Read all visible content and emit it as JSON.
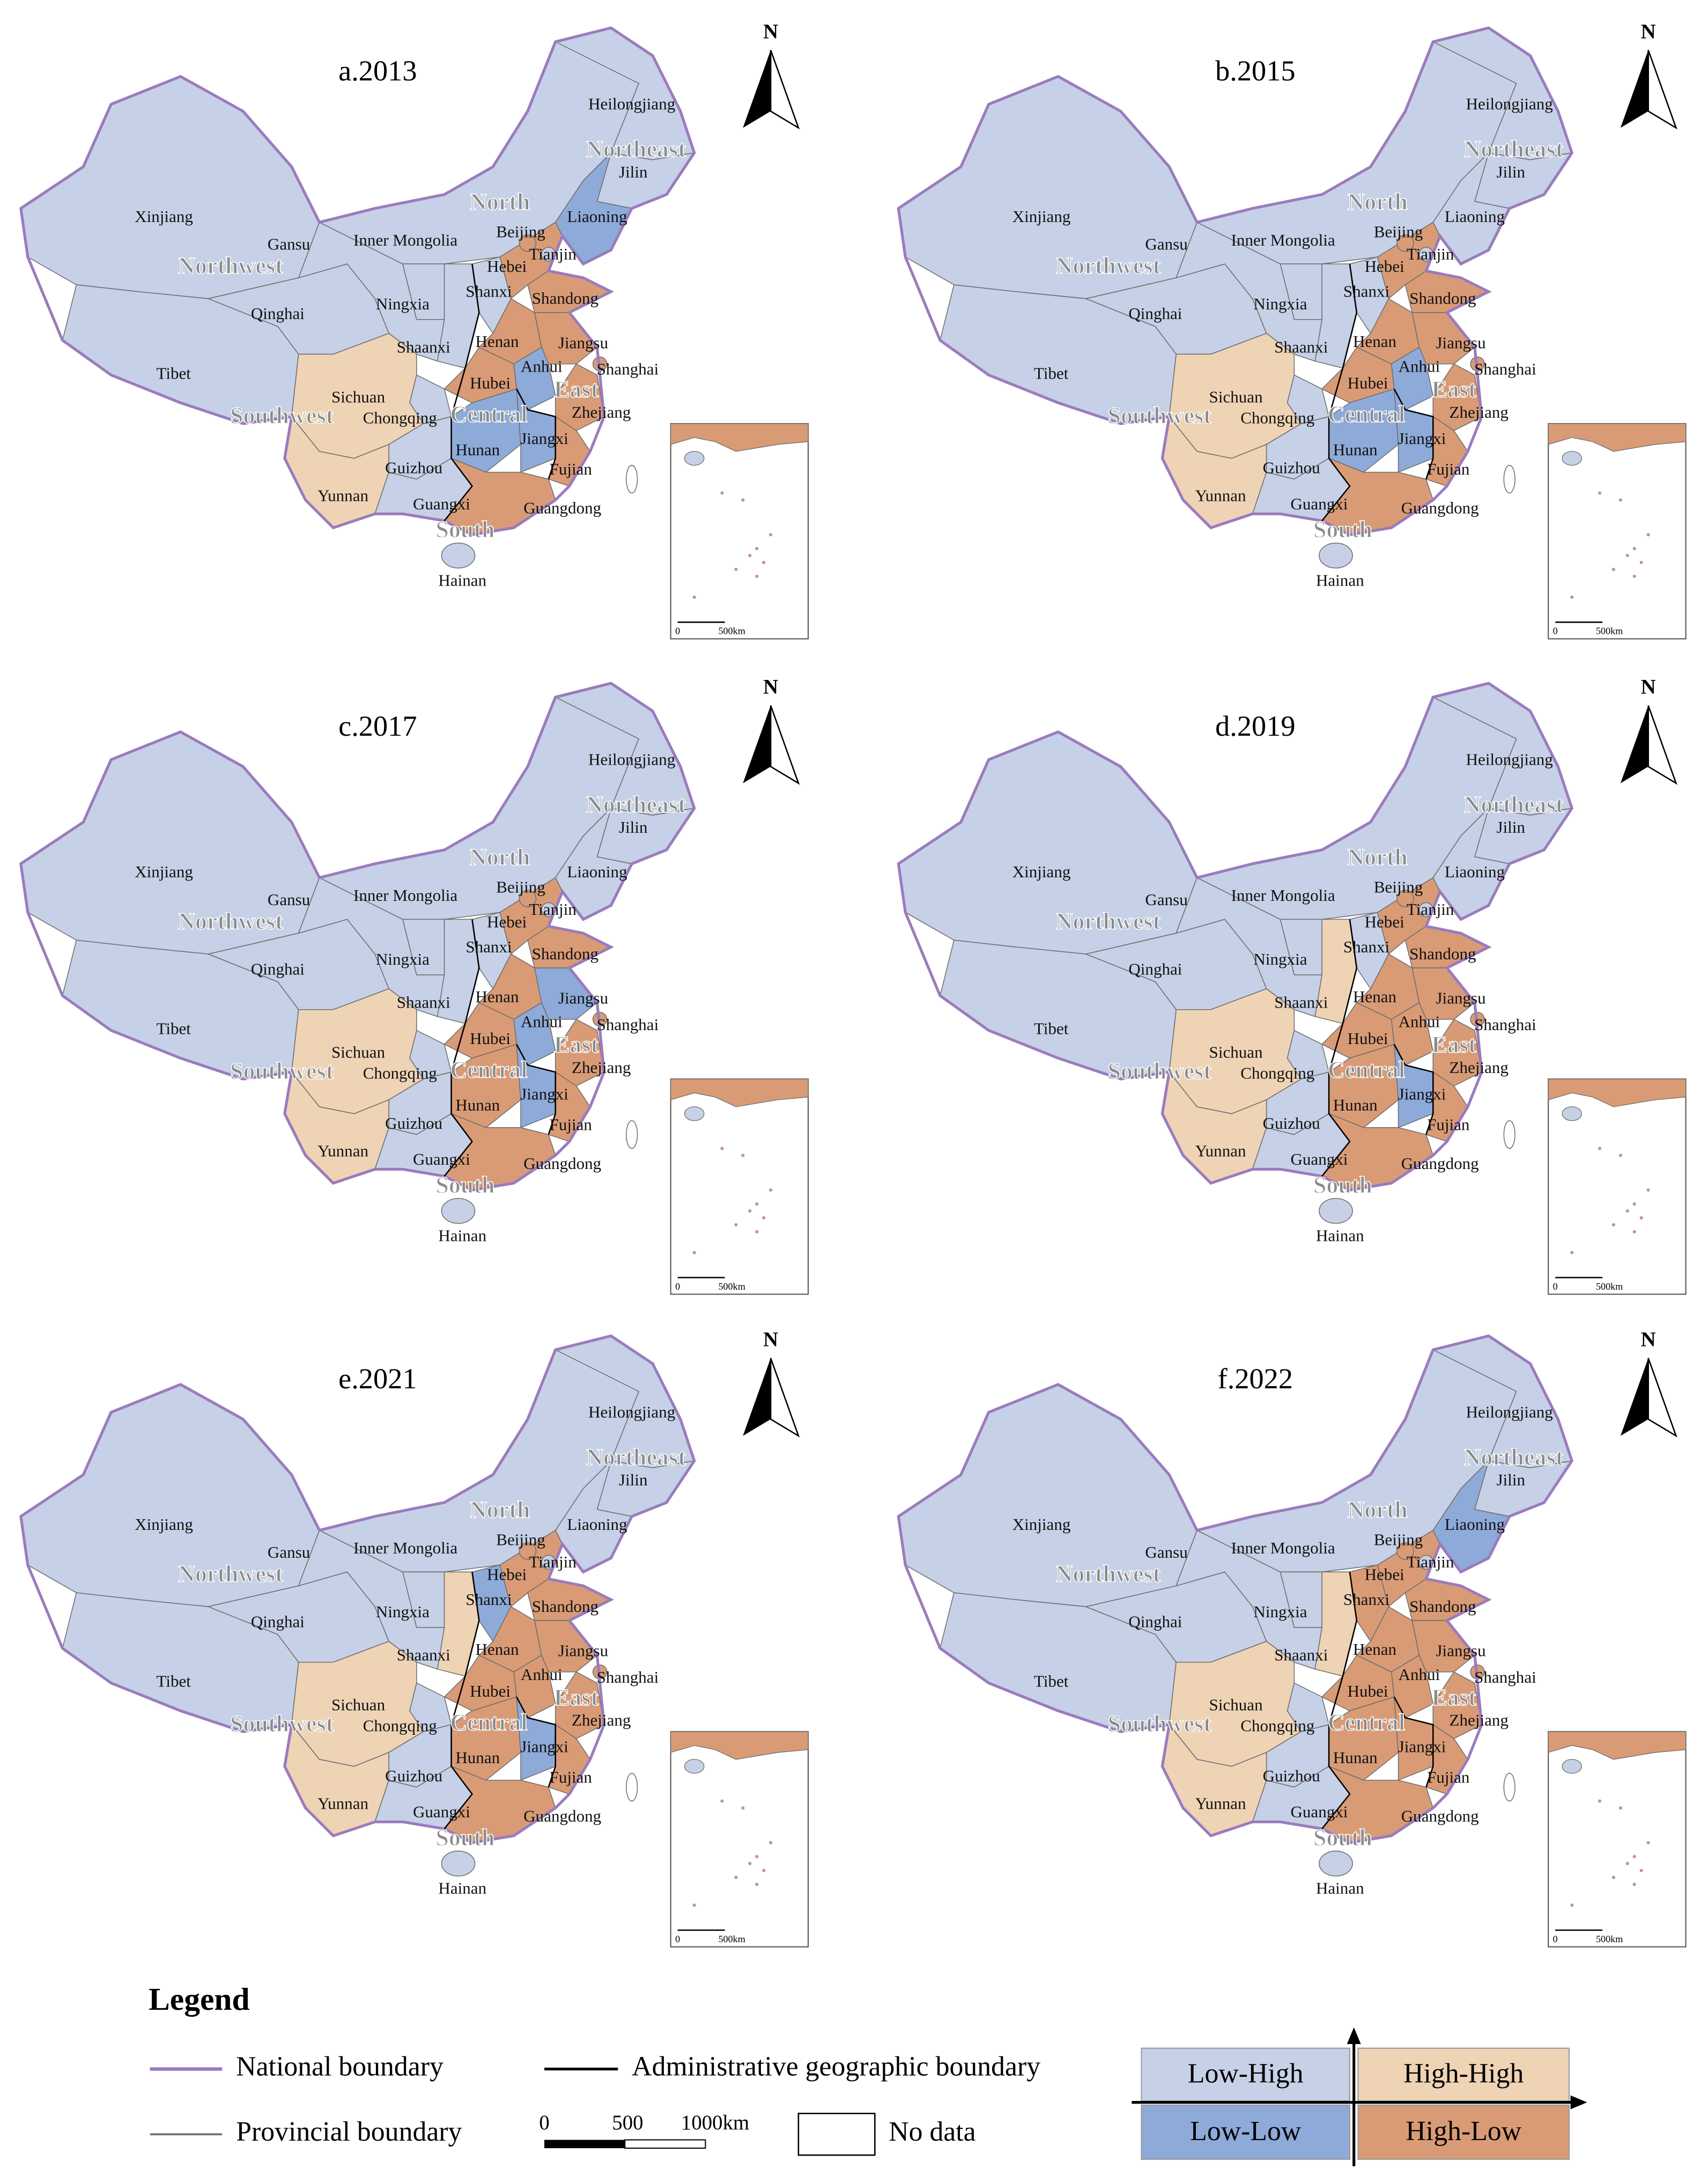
{
  "legend": {
    "title": "Legend",
    "national_boundary": "National boundary",
    "provincial_boundary": "Provincial boundary",
    "administrative_boundary": "Administrative geographic boundary",
    "no_data": "No data",
    "scale": [
      "0",
      "500",
      "1000km"
    ],
    "classes": [
      {
        "label": "Low-High",
        "color": "#c6d1e7"
      },
      {
        "label": "High-High",
        "color": "#efd3b5"
      },
      {
        "label": "Low-Low",
        "color": "#8eaad8"
      },
      {
        "label": "High-Low",
        "color": "#d99b75"
      }
    ]
  },
  "north_arrow": "N",
  "inset_scale": [
    "0",
    "500km"
  ],
  "regions": [
    "Northeast",
    "North",
    "Northwest",
    "East",
    "Central",
    "Southwest",
    "South"
  ],
  "provinces": [
    "Xinjiang",
    "Tibet",
    "Qinghai",
    "Gansu",
    "Inner Mongolia",
    "Heilongjiang",
    "Jilin",
    "Liaoning",
    "Ningxia",
    "Shaanxi",
    "Shanxi",
    "Hebei",
    "Beijing",
    "Tianjin",
    "Shandong",
    "Henan",
    "Jiangsu",
    "Anhui",
    "Shanghai",
    "Hubei",
    "Zhejiang",
    "Chongqing",
    "Sichuan",
    "Hunan",
    "Jiangxi",
    "Fujian",
    "Guizhou",
    "Yunnan",
    "Guangxi",
    "Guangdong",
    "Hainan"
  ],
  "panels": [
    {
      "title": "a.2013",
      "classes": [
        "Low-High",
        "Low-High",
        "Low-High",
        "Low-High",
        "Low-High",
        "Low-High",
        "Low-High",
        "Low-Low",
        "Low-High",
        "Low-High",
        "Low-High",
        "High-Low",
        "High-Low",
        "Low-High",
        "High-Low",
        "High-Low",
        "High-Low",
        "Low-Low",
        "High-Low",
        "High-Low",
        "High-Low",
        "Low-High",
        "High-High",
        "Low-Low",
        "Low-Low",
        "High-Low",
        "Low-High",
        "High-High",
        "Low-High",
        "High-Low",
        "Low-High"
      ]
    },
    {
      "title": "b.2015",
      "classes": [
        "Low-High",
        "Low-High",
        "Low-High",
        "Low-High",
        "Low-High",
        "Low-High",
        "Low-High",
        "Low-High",
        "Low-High",
        "Low-High",
        "Low-High",
        "High-Low",
        "High-Low",
        "Low-High",
        "High-Low",
        "High-Low",
        "High-Low",
        "Low-Low",
        "High-Low",
        "High-Low",
        "High-Low",
        "Low-High",
        "High-High",
        "Low-Low",
        "Low-Low",
        "High-Low",
        "Low-High",
        "High-High",
        "Low-High",
        "High-Low",
        "Low-High"
      ]
    },
    {
      "title": "c.2017",
      "classes": [
        "Low-High",
        "Low-High",
        "Low-High",
        "Low-High",
        "Low-High",
        "Low-High",
        "Low-High",
        "Low-High",
        "Low-High",
        "Low-High",
        "Low-High",
        "High-Low",
        "High-Low",
        "Low-High",
        "High-Low",
        "High-Low",
        "Low-Low",
        "Low-Low",
        "High-Low",
        "High-Low",
        "High-Low",
        "Low-High",
        "High-High",
        "High-Low",
        "Low-Low",
        "High-Low",
        "Low-High",
        "High-High",
        "Low-High",
        "High-Low",
        "Low-High"
      ]
    },
    {
      "title": "d.2019",
      "classes": [
        "Low-High",
        "Low-High",
        "Low-High",
        "Low-High",
        "Low-High",
        "Low-High",
        "Low-High",
        "Low-High",
        "Low-High",
        "High-High",
        "Low-High",
        "High-Low",
        "High-Low",
        "Low-High",
        "High-Low",
        "High-Low",
        "High-Low",
        "High-Low",
        "High-Low",
        "High-Low",
        "High-Low",
        "Low-High",
        "High-High",
        "High-Low",
        "Low-Low",
        "High-Low",
        "Low-High",
        "High-High",
        "Low-High",
        "High-Low",
        "Low-High"
      ]
    },
    {
      "title": "e.2021",
      "classes": [
        "Low-High",
        "Low-High",
        "Low-High",
        "Low-High",
        "Low-High",
        "Low-High",
        "Low-High",
        "Low-High",
        "Low-High",
        "High-High",
        "Low-Low",
        "High-Low",
        "High-Low",
        "Low-High",
        "High-Low",
        "High-Low",
        "High-Low",
        "High-Low",
        "High-Low",
        "High-Low",
        "High-Low",
        "Low-High",
        "High-High",
        "High-Low",
        "Low-Low",
        "High-Low",
        "Low-High",
        "High-High",
        "Low-High",
        "High-Low",
        "Low-High"
      ]
    },
    {
      "title": "f.2022",
      "classes": [
        "Low-High",
        "Low-High",
        "Low-High",
        "Low-High",
        "Low-High",
        "Low-High",
        "Low-High",
        "Low-Low",
        "Low-High",
        "High-High",
        "High-Low",
        "High-Low",
        "High-Low",
        "Low-High",
        "High-Low",
        "High-Low",
        "High-Low",
        "High-Low",
        "High-Low",
        "High-Low",
        "High-Low",
        "Low-High",
        "High-High",
        "High-Low",
        "High-Low",
        "High-Low",
        "Low-High",
        "High-High",
        "Low-High",
        "High-Low",
        "Low-High"
      ]
    }
  ]
}
